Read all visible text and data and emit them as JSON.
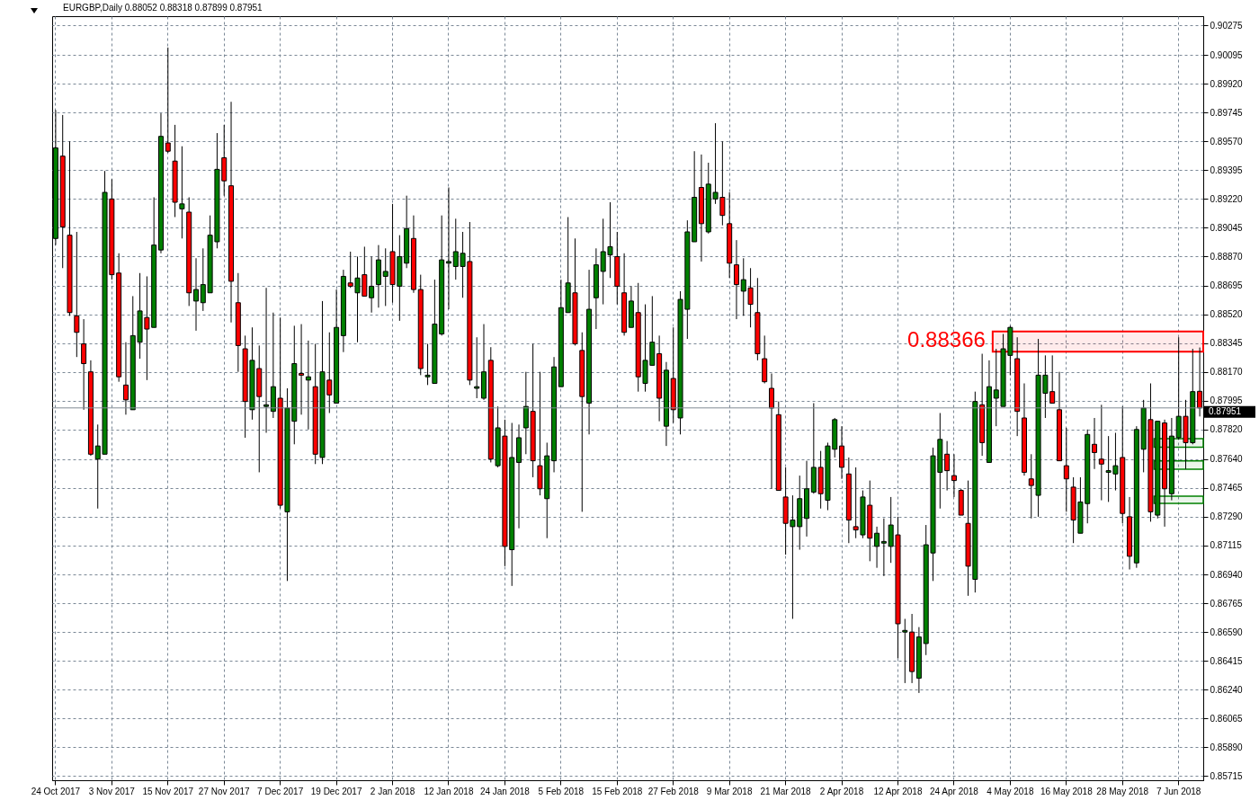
{
  "chart_data": {
    "type": "candlestick",
    "title": "EURGBP,Daily  0.88052 0.88318 0.87899 0.87951",
    "categories": [
      "24 Oct 2017",
      null,
      null,
      null,
      null,
      null,
      null,
      null,
      "3 Nov 2017",
      null,
      null,
      null,
      null,
      null,
      null,
      null,
      "15 Nov 2017",
      null,
      null,
      null,
      null,
      null,
      null,
      null,
      "27 Nov 2017",
      null,
      null,
      null,
      null,
      null,
      null,
      null,
      "7 Dec 2017",
      null,
      null,
      null,
      null,
      null,
      null,
      null,
      "19 Dec 2017",
      null,
      null,
      null,
      null,
      null,
      null,
      null,
      "2 Jan 2018",
      null,
      null,
      null,
      null,
      null,
      null,
      null,
      "12 Jan 2018",
      null,
      null,
      null,
      null,
      null,
      null,
      null,
      "24 Jan 2018",
      null,
      null,
      null,
      null,
      null,
      null,
      null,
      "5 Feb 2018",
      null,
      null,
      null,
      null,
      null,
      null,
      null,
      "15 Feb 2018",
      null,
      null,
      null,
      null,
      null,
      null,
      null,
      "27 Feb 2018",
      null,
      null,
      null,
      null,
      null,
      null,
      null,
      "9 Mar 2018",
      null,
      null,
      null,
      null,
      null,
      null,
      null,
      "21 Mar 2018",
      null,
      null,
      null,
      null,
      null,
      null,
      null,
      "2 Apr 2018",
      null,
      null,
      null,
      null,
      null,
      null,
      null,
      "12 Apr 2018",
      null,
      null,
      null,
      null,
      null,
      null,
      null,
      "24 Apr 2018",
      null,
      null,
      null,
      null,
      null,
      null,
      null,
      "4 May 2018",
      null,
      null,
      null,
      null,
      null,
      null,
      null,
      "16 May 2018",
      null,
      null,
      null,
      null,
      null,
      null,
      null,
      "28 May 2018",
      null,
      null,
      null,
      null,
      null,
      null,
      null,
      "7 Jun 2018",
      null,
      null,
      null
    ],
    "ohlc": [
      [
        0.8898,
        0.8976,
        0.8894,
        0.8953
      ],
      [
        0.8948,
        0.8973,
        0.888,
        0.8905
      ],
      [
        0.89,
        0.8957,
        0.8851,
        0.8853
      ],
      [
        0.8851,
        0.8902,
        0.8826,
        0.8841
      ],
      [
        0.8834,
        0.8849,
        0.8794,
        0.8822
      ],
      [
        0.8817,
        0.8824,
        0.8766,
        0.8767
      ],
      [
        0.8764,
        0.8785,
        0.8734,
        0.8772
      ],
      [
        0.8767,
        0.8939,
        0.8767,
        0.8926
      ],
      [
        0.8922,
        0.8934,
        0.8873,
        0.8876
      ],
      [
        0.8877,
        0.8889,
        0.8811,
        0.8814
      ],
      [
        0.8809,
        0.8835,
        0.8791,
        0.88
      ],
      [
        0.8794,
        0.8863,
        0.8794,
        0.8839
      ],
      [
        0.8835,
        0.8877,
        0.8825,
        0.8854
      ],
      [
        0.885,
        0.8875,
        0.8812,
        0.8843
      ],
      [
        0.8844,
        0.8923,
        0.8844,
        0.8894
      ],
      [
        0.8891,
        0.8974,
        0.8889,
        0.896
      ],
      [
        0.8956,
        0.9014,
        0.895,
        0.8951
      ],
      [
        0.8945,
        0.8967,
        0.8911,
        0.892
      ],
      [
        0.8916,
        0.8954,
        0.8898,
        0.8919
      ],
      [
        0.8914,
        0.8923,
        0.8857,
        0.8865
      ],
      [
        0.886,
        0.8886,
        0.8842,
        0.8867
      ],
      [
        0.8859,
        0.8892,
        0.8854,
        0.887
      ],
      [
        0.8865,
        0.8912,
        0.8865,
        0.89
      ],
      [
        0.8896,
        0.8962,
        0.8892,
        0.894
      ],
      [
        0.8947,
        0.8967,
        0.8924,
        0.8933
      ],
      [
        0.893,
        0.8981,
        0.8847,
        0.8872
      ],
      [
        0.8859,
        0.8877,
        0.8817,
        0.8833
      ],
      [
        0.8831,
        0.8839,
        0.8777,
        0.8799
      ],
      [
        0.8794,
        0.8844,
        0.8788,
        0.8824
      ],
      [
        0.8819,
        0.8833,
        0.8756,
        0.8802
      ],
      [
        0.8796,
        0.8868,
        0.878,
        0.8797
      ],
      [
        0.8793,
        0.8853,
        0.8789,
        0.8808
      ],
      [
        0.8801,
        0.885,
        0.8734,
        0.8736
      ],
      [
        0.8732,
        0.8807,
        0.869,
        0.8795
      ],
      [
        0.8787,
        0.8845,
        0.8773,
        0.8822
      ],
      [
        0.8816,
        0.8846,
        0.8791,
        0.8815
      ],
      [
        0.8812,
        0.8836,
        0.8782,
        0.8814
      ],
      [
        0.8808,
        0.8834,
        0.8761,
        0.8767
      ],
      [
        0.8765,
        0.886,
        0.8761,
        0.8817
      ],
      [
        0.8812,
        0.8841,
        0.8792,
        0.8803
      ],
      [
        0.8798,
        0.8867,
        0.8798,
        0.8844
      ],
      [
        0.8839,
        0.8879,
        0.8829,
        0.8875
      ],
      [
        0.8871,
        0.889,
        0.8868,
        0.8869
      ],
      [
        0.8865,
        0.8887,
        0.8835,
        0.8874
      ],
      [
        0.8876,
        0.8893,
        0.8863,
        0.8863
      ],
      [
        0.8862,
        0.8887,
        0.8853,
        0.8869
      ],
      [
        0.887,
        0.8894,
        0.8856,
        0.8885
      ],
      [
        0.8875,
        0.8892,
        0.8857,
        0.8878
      ],
      [
        0.889,
        0.8919,
        0.8859,
        0.887
      ],
      [
        0.8869,
        0.89,
        0.8848,
        0.8887
      ],
      [
        0.8883,
        0.8924,
        0.888,
        0.8904
      ],
      [
        0.8898,
        0.8912,
        0.8865,
        0.8867
      ],
      [
        0.8867,
        0.8876,
        0.8815,
        0.8819
      ],
      [
        0.8814,
        0.8834,
        0.8809,
        0.8815
      ],
      [
        0.881,
        0.8873,
        0.881,
        0.8846
      ],
      [
        0.884,
        0.8912,
        0.8839,
        0.8885
      ],
      [
        0.8883,
        0.8929,
        0.8855,
        0.8884
      ],
      [
        0.8881,
        0.891,
        0.8873,
        0.889
      ],
      [
        0.8881,
        0.8902,
        0.8862,
        0.8889
      ],
      [
        0.8884,
        0.8908,
        0.8809,
        0.8812
      ],
      [
        0.8807,
        0.8838,
        0.8801,
        0.8808
      ],
      [
        0.8801,
        0.8846,
        0.88,
        0.8817
      ],
      [
        0.8824,
        0.8832,
        0.8762,
        0.8764
      ],
      [
        0.876,
        0.8796,
        0.8759,
        0.8783
      ],
      [
        0.8778,
        0.8788,
        0.8699,
        0.8711
      ],
      [
        0.8709,
        0.8786,
        0.8687,
        0.8765
      ],
      [
        0.8762,
        0.8785,
        0.8722,
        0.8777
      ],
      [
        0.8783,
        0.8817,
        0.8767,
        0.8796
      ],
      [
        0.8793,
        0.8834,
        0.8753,
        0.8763
      ],
      [
        0.876,
        0.8817,
        0.8742,
        0.8746
      ],
      [
        0.874,
        0.8774,
        0.8716,
        0.8766
      ],
      [
        0.8763,
        0.8826,
        0.8756,
        0.882
      ],
      [
        0.8808,
        0.8873,
        0.8808,
        0.8856
      ],
      [
        0.8853,
        0.8911,
        0.8853,
        0.8871
      ],
      [
        0.8865,
        0.8898,
        0.8833,
        0.8834
      ],
      [
        0.883,
        0.8841,
        0.8732,
        0.8802
      ],
      [
        0.8798,
        0.8879,
        0.8779,
        0.8855
      ],
      [
        0.8862,
        0.8892,
        0.8843,
        0.8882
      ],
      [
        0.8878,
        0.891,
        0.8858,
        0.889
      ],
      [
        0.8888,
        0.892,
        0.8874,
        0.8893
      ],
      [
        0.8887,
        0.8902,
        0.8858,
        0.8869
      ],
      [
        0.8865,
        0.8889,
        0.8839,
        0.8841
      ],
      [
        0.8844,
        0.8869,
        0.8844,
        0.886
      ],
      [
        0.8853,
        0.8871,
        0.8805,
        0.8814
      ],
      [
        0.881,
        0.8858,
        0.8805,
        0.8824
      ],
      [
        0.8821,
        0.8863,
        0.8821,
        0.8835
      ],
      [
        0.8828,
        0.8839,
        0.8787,
        0.8801
      ],
      [
        0.8784,
        0.8823,
        0.8772,
        0.8818
      ],
      [
        0.8813,
        0.8844,
        0.8786,
        0.8794
      ],
      [
        0.8789,
        0.8866,
        0.8779,
        0.8861
      ],
      [
        0.8855,
        0.8909,
        0.8837,
        0.8902
      ],
      [
        0.8896,
        0.8951,
        0.8896,
        0.8923
      ],
      [
        0.8929,
        0.8949,
        0.8884,
        0.8907
      ],
      [
        0.8902,
        0.8944,
        0.8901,
        0.8931
      ],
      [
        0.8922,
        0.8968,
        0.8919,
        0.8926
      ],
      [
        0.8923,
        0.8957,
        0.8906,
        0.8912
      ],
      [
        0.8907,
        0.8926,
        0.8874,
        0.8883
      ],
      [
        0.8882,
        0.8897,
        0.8849,
        0.887
      ],
      [
        0.8866,
        0.8886,
        0.8851,
        0.8873
      ],
      [
        0.8868,
        0.888,
        0.8844,
        0.8858
      ],
      [
        0.8853,
        0.8874,
        0.8824,
        0.8828
      ],
      [
        0.8825,
        0.8839,
        0.881,
        0.8811
      ],
      [
        0.8807,
        0.8816,
        0.8746,
        0.8795
      ],
      [
        0.8791,
        0.8799,
        0.8745,
        0.8745
      ],
      [
        0.8741,
        0.8759,
        0.8706,
        0.8725
      ],
      [
        0.8723,
        0.8742,
        0.8667,
        0.8727
      ],
      [
        0.8723,
        0.8754,
        0.8709,
        0.874
      ],
      [
        0.8728,
        0.8763,
        0.8717,
        0.8746
      ],
      [
        0.8744,
        0.8798,
        0.8743,
        0.8759
      ],
      [
        0.8759,
        0.8769,
        0.8734,
        0.8743
      ],
      [
        0.8739,
        0.8774,
        0.8733,
        0.8772
      ],
      [
        0.877,
        0.8789,
        0.8765,
        0.8788
      ],
      [
        0.8772,
        0.8784,
        0.8752,
        0.8759
      ],
      [
        0.8755,
        0.8765,
        0.8713,
        0.8727
      ],
      [
        0.8723,
        0.8759,
        0.8716,
        0.8721
      ],
      [
        0.8718,
        0.8745,
        0.8716,
        0.8741
      ],
      [
        0.8736,
        0.8751,
        0.8702,
        0.8716
      ],
      [
        0.8711,
        0.8723,
        0.8698,
        0.8719
      ],
      [
        0.8713,
        0.8728,
        0.8693,
        0.8714
      ],
      [
        0.8711,
        0.8741,
        0.8701,
        0.8724
      ],
      [
        0.8718,
        0.8729,
        0.8643,
        0.8664
      ],
      [
        0.8659,
        0.8667,
        0.8628,
        0.866
      ],
      [
        0.8659,
        0.867,
        0.8628,
        0.8635
      ],
      [
        0.8631,
        0.8662,
        0.8622,
        0.8656
      ],
      [
        0.8652,
        0.8724,
        0.8645,
        0.8712
      ],
      [
        0.8707,
        0.8771,
        0.869,
        0.8766
      ],
      [
        0.8756,
        0.8792,
        0.8734,
        0.8776
      ],
      [
        0.8767,
        0.8775,
        0.8745,
        0.8757
      ],
      [
        0.8754,
        0.8767,
        0.8741,
        0.8751
      ],
      [
        0.8745,
        0.8746,
        0.873,
        0.873
      ],
      [
        0.8725,
        0.8751,
        0.8681,
        0.8699
      ],
      [
        0.8691,
        0.8805,
        0.8683,
        0.8799
      ],
      [
        0.8797,
        0.8828,
        0.8766,
        0.8774
      ],
      [
        0.8762,
        0.8824,
        0.8762,
        0.8808
      ],
      [
        0.8801,
        0.8831,
        0.8784,
        0.8806
      ],
      [
        0.8796,
        0.884,
        0.8796,
        0.8831
      ],
      [
        0.8827,
        0.8845,
        0.8815,
        0.8844
      ],
      [
        0.8825,
        0.8838,
        0.8778,
        0.8793
      ],
      [
        0.8789,
        0.881,
        0.8754,
        0.8756
      ],
      [
        0.8752,
        0.8767,
        0.8728,
        0.8748
      ],
      [
        0.8742,
        0.8837,
        0.8729,
        0.8815
      ],
      [
        0.8804,
        0.8827,
        0.8789,
        0.8815
      ],
      [
        0.8805,
        0.8827,
        0.8798,
        0.8798
      ],
      [
        0.8794,
        0.8817,
        0.8763,
        0.8763
      ],
      [
        0.876,
        0.8783,
        0.8732,
        0.8752
      ],
      [
        0.8747,
        0.8753,
        0.8713,
        0.8727
      ],
      [
        0.8719,
        0.8753,
        0.8719,
        0.8738
      ],
      [
        0.8737,
        0.8782,
        0.8725,
        0.8779
      ],
      [
        0.8773,
        0.8789,
        0.8758,
        0.8768
      ],
      [
        0.8764,
        0.8797,
        0.8739,
        0.8761
      ],
      [
        0.8756,
        0.8778,
        0.8738,
        0.8757
      ],
      [
        0.8755,
        0.878,
        0.8745,
        0.876
      ],
      [
        0.8765,
        0.8796,
        0.8725,
        0.8731
      ],
      [
        0.8729,
        0.8741,
        0.8697,
        0.8705
      ],
      [
        0.8701,
        0.8784,
        0.8698,
        0.8782
      ],
      [
        0.877,
        0.88,
        0.8756,
        0.8795
      ],
      [
        0.8788,
        0.881,
        0.8726,
        0.8732
      ],
      [
        0.873,
        0.8787,
        0.8728,
        0.8787
      ],
      [
        0.8786,
        0.8788,
        0.8723,
        0.8746
      ],
      [
        0.8743,
        0.8789,
        0.8739,
        0.8778
      ],
      [
        0.8777,
        0.8838,
        0.8776,
        0.879
      ],
      [
        0.879,
        0.88,
        0.8758,
        0.8774
      ],
      [
        0.8774,
        0.8831,
        0.8773,
        0.8805
      ],
      [
        0.88052,
        0.88318,
        0.87899,
        0.87951
      ]
    ],
    "colors": [
      "#008000",
      "#ff0000",
      "#ff0000",
      "#ff0000",
      "#ff0000",
      "#ff0000",
      "#008000",
      "#008000",
      "#ff0000",
      "#ff0000",
      "#ff0000",
      "#008000",
      "#008000",
      "#ff0000",
      "#008000",
      "#008000",
      "#ff0000",
      "#ff0000",
      "#008000",
      "#ff0000",
      "#008000",
      "#008000",
      "#008000",
      "#008000",
      "#ff0000",
      "#ff0000",
      "#ff0000",
      "#ff0000",
      "#008000",
      "#ff0000",
      "#008000",
      "#008000",
      "#ff0000",
      "#008000",
      "#008000",
      "#ff0000",
      "#008000",
      "#ff0000",
      "#008000",
      "#ff0000",
      "#008000",
      "#008000",
      "#ff0000",
      "#008000",
      "#ff0000",
      "#008000",
      "#008000",
      "#008000",
      "#ff0000",
      "#008000",
      "#008000",
      "#ff0000",
      "#ff0000",
      "#008000",
      "#008000",
      "#008000",
      "#008000",
      "#008000",
      "#008000",
      "#ff0000",
      "#008000",
      "#008000",
      "#ff0000",
      "#008000",
      "#ff0000",
      "#008000",
      "#008000",
      "#008000",
      "#ff0000",
      "#ff0000",
      "#008000",
      "#008000",
      "#008000",
      "#008000",
      "#ff0000",
      "#ff0000",
      "#008000",
      "#008000",
      "#008000",
      "#008000",
      "#ff0000",
      "#ff0000",
      "#008000",
      "#ff0000",
      "#008000",
      "#008000",
      "#ff0000",
      "#008000",
      "#ff0000",
      "#008000",
      "#008000",
      "#008000",
      "#ff0000",
      "#008000",
      "#008000",
      "#ff0000",
      "#ff0000",
      "#ff0000",
      "#008000",
      "#ff0000",
      "#ff0000",
      "#ff0000",
      "#ff0000",
      "#ff0000",
      "#ff0000",
      "#008000",
      "#008000",
      "#008000",
      "#008000",
      "#ff0000",
      "#008000",
      "#008000",
      "#ff0000",
      "#ff0000",
      "#ff0000",
      "#008000",
      "#ff0000",
      "#008000",
      "#008000",
      "#008000",
      "#ff0000",
      "#008000",
      "#ff0000",
      "#008000",
      "#008000",
      "#008000",
      "#008000",
      "#ff0000",
      "#ff0000",
      "#ff0000",
      "#ff0000",
      "#008000",
      "#ff0000",
      "#008000",
      "#008000",
      "#008000",
      "#008000",
      "#ff0000",
      "#ff0000",
      "#ff0000",
      "#008000",
      "#008000",
      "#ff0000",
      "#ff0000",
      "#ff0000",
      "#ff0000",
      "#008000",
      "#008000",
      "#ff0000",
      "#ff0000",
      "#008000",
      "#008000",
      "#ff0000",
      "#ff0000",
      "#008000",
      "#008000",
      "#ff0000",
      "#008000",
      "#ff0000",
      "#008000",
      "#008000",
      "#ff0000",
      "#008000",
      "#ff0000"
    ],
    "ylim": [
      0.8569,
      0.9033
    ],
    "yticks": [
      0.90275,
      0.90095,
      {
        "value": 0.8992,
        "label": "0.89920"
      },
      0.89745,
      {
        "value": 0.8957,
        "label": "0.89570"
      },
      0.89395,
      {
        "value": 0.8922,
        "label": "0.89220"
      },
      0.89045,
      {
        "value": 0.8887,
        "label": "0.88870"
      },
      0.88695,
      {
        "value": 0.8852,
        "label": "0.88520"
      },
      0.88345,
      {
        "value": 0.8817,
        "label": "0.88170"
      },
      0.87995,
      {
        "value": 0.8782,
        "label": "0.87820"
      },
      {
        "value": 0.8764,
        "label": "0.87640"
      },
      0.87465,
      {
        "value": 0.8729,
        "label": "0.87290"
      },
      0.87115,
      {
        "value": 0.8694,
        "label": "0.86940"
      },
      0.86765,
      {
        "value": 0.8659,
        "label": "0.86590"
      },
      0.86415,
      {
        "value": 0.8624,
        "label": "0.86240"
      },
      0.86065,
      {
        "value": 0.8589,
        "label": "0.85890"
      },
      0.85715
    ],
    "grid": true,
    "ref_lines": [
      {
        "axis": "y",
        "value": 0.87951,
        "label": "0.87951",
        "color": "#808a94"
      }
    ],
    "bands": [
      {
        "axis": "y",
        "from": 0.88293,
        "to": 0.88415,
        "label": "0.88366",
        "color": "#ff0000"
      },
      {
        "axis": "y",
        "from": 0.87712,
        "to": 0.87765,
        "color": "#008000"
      },
      {
        "axis": "y",
        "from": 0.87579,
        "to": 0.87629,
        "color": "#008000"
      },
      {
        "axis": "y",
        "from": 0.87372,
        "to": 0.87415,
        "color": "#008000"
      }
    ]
  }
}
